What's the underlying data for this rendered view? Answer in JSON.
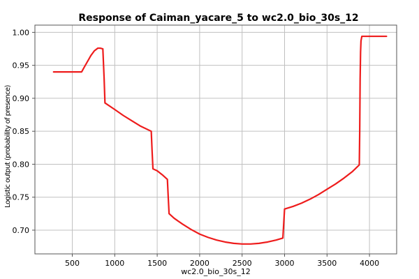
{
  "chart_data": {
    "type": "line",
    "title": "Response of Caiman_yacare_5 to wc2.0_bio_30s_12",
    "xlabel": "wc2.0_bio_30s_12",
    "ylabel": "Logistic output (probability of presence)",
    "xlim": [
      60,
      4320
    ],
    "ylim": [
      0.664,
      1.011
    ],
    "xticks": [
      500,
      1000,
      1500,
      2000,
      2500,
      3000,
      3500,
      4000
    ],
    "yticks": [
      0.7,
      0.75,
      0.8,
      0.85,
      0.9,
      0.95,
      1.0
    ],
    "ytick_labels": [
      "0.70",
      "0.75",
      "0.80",
      "0.85",
      "0.90",
      "0.95",
      "1.00"
    ],
    "grid": true,
    "series": [
      {
        "color": "#ee1c1c",
        "x": [
          280,
          610,
          640,
          680,
          720,
          760,
          800,
          830,
          860,
          875,
          885,
          1000,
          1100,
          1200,
          1300,
          1430,
          1440,
          1450,
          1500,
          1560,
          1620,
          1630,
          1640,
          1700,
          1800,
          1900,
          2000,
          2100,
          2200,
          2300,
          2400,
          2500,
          2600,
          2700,
          2800,
          2900,
          2980,
          2990,
          3000,
          3100,
          3200,
          3300,
          3400,
          3500,
          3600,
          3700,
          3800,
          3880,
          3885,
          3890,
          3895,
          3900,
          3910,
          4000,
          4200
        ],
        "y": [
          0.94,
          0.94,
          0.947,
          0.956,
          0.965,
          0.972,
          0.976,
          0.976,
          0.975,
          0.93,
          0.893,
          0.883,
          0.874,
          0.866,
          0.858,
          0.85,
          0.82,
          0.793,
          0.79,
          0.784,
          0.777,
          0.75,
          0.725,
          0.718,
          0.709,
          0.701,
          0.694,
          0.689,
          0.685,
          0.682,
          0.68,
          0.679,
          0.679,
          0.68,
          0.682,
          0.685,
          0.688,
          0.71,
          0.732,
          0.736,
          0.741,
          0.747,
          0.754,
          0.762,
          0.77,
          0.779,
          0.789,
          0.799,
          0.85,
          0.93,
          0.97,
          0.987,
          0.994,
          0.994,
          0.994
        ]
      }
    ]
  }
}
